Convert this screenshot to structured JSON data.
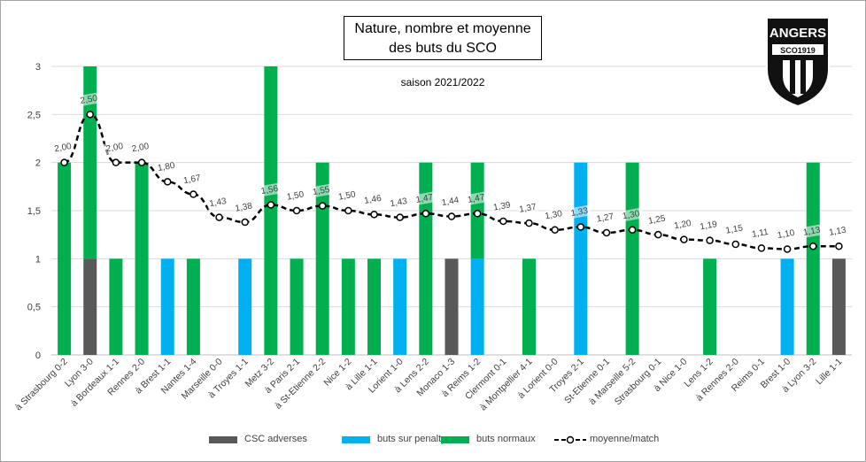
{
  "title": "Nature, nombre et moyenne des buts du SCO",
  "subtitle": "saison 2021/2022",
  "logo": {
    "line1": "ANGERS",
    "line2": "SCO1919"
  },
  "legend": [
    "CSC adverses",
    "buts sur penalty",
    "buts normaux",
    "moyenne/match"
  ],
  "colors": {
    "csc": "#595959",
    "penalty": "#00b0f0",
    "normal": "#00b050",
    "average": "#000000"
  },
  "chart_data": {
    "type": "bar",
    "categories": [
      "à Strasbourg 0-2",
      "Lyon 3-0",
      "à Bordeaux 1-1",
      "Rennes 2-0",
      "à Brest 1-1",
      "Nantes 1-4",
      "Marseille 0-0",
      "à Troyes 1-1",
      "Metz 3-2",
      "à Paris 2-1",
      "à St-Etienne 2-2",
      "Nice 1-2",
      "à Lille 1-1",
      "Lorient 1-0",
      "à Lens 2-2",
      "Monaco 1-3",
      "à Reims 1-2",
      "Clermont 0-1",
      "à Montpellier 4-1",
      "à Lorient 0-0",
      "Troyes 2-1",
      "St-Etienne 0-1",
      "à Marseille 5-2",
      "Strasbourg 0-1",
      "à Nice 1-0",
      "Lens 1-2",
      "à Rennes 2-0",
      "Reims 0-1",
      "Brest 1-0",
      "à Lyon 3-2",
      "Lille 1-1"
    ],
    "series": [
      {
        "name": "CSC adverses",
        "values": [
          0,
          1,
          0,
          0,
          0,
          0,
          0,
          0,
          0,
          0,
          0,
          0,
          0,
          0,
          0,
          1,
          0,
          0,
          0,
          0,
          0,
          0,
          0,
          0,
          0,
          0,
          0,
          0,
          0,
          0,
          1
        ]
      },
      {
        "name": "buts sur penalty",
        "values": [
          0,
          0,
          0,
          0,
          1,
          0,
          0,
          1,
          0,
          0,
          0,
          0,
          0,
          1,
          0,
          0,
          1,
          0,
          0,
          0,
          2,
          0,
          0,
          0,
          0,
          0,
          0,
          0,
          1,
          0,
          0
        ]
      },
      {
        "name": "buts normaux",
        "values": [
          2,
          2,
          1,
          2,
          0,
          1,
          0,
          0,
          3,
          1,
          2,
          1,
          1,
          0,
          2,
          0,
          1,
          0,
          1,
          0,
          0,
          0,
          2,
          0,
          0,
          1,
          0,
          0,
          0,
          2,
          0
        ]
      },
      {
        "name": "moyenne/match",
        "type": "line",
        "values": [
          2.0,
          2.5,
          2.0,
          2.0,
          1.8,
          1.67,
          1.43,
          1.38,
          1.56,
          1.5,
          1.55,
          1.5,
          1.46,
          1.43,
          1.47,
          1.44,
          1.47,
          1.39,
          1.37,
          1.3,
          1.33,
          1.27,
          1.3,
          1.25,
          1.2,
          1.19,
          1.15,
          1.11,
          1.1,
          1.13,
          1.13
        ],
        "labels": [
          "2,00",
          "2,50",
          "2,00",
          "2,00",
          "1,80",
          "1,67",
          "1,43",
          "1,38",
          "1,56",
          "1,50",
          "1,55",
          "1,50",
          "1,46",
          "1,43",
          "1,47",
          "1,44",
          "1,47",
          "1,39",
          "1,37",
          "1,30",
          "1,33",
          "1,27",
          "1,30",
          "1,25",
          "1,20",
          "1,19",
          "1,15",
          "1,11",
          "1,10",
          "1,13",
          "1,13"
        ]
      }
    ],
    "ylim": [
      0,
      3
    ],
    "yticks": [
      "0",
      "0,5",
      "1",
      "1,5",
      "2",
      "2,5",
      "3"
    ],
    "grid": true,
    "legend_position": "bottom"
  }
}
